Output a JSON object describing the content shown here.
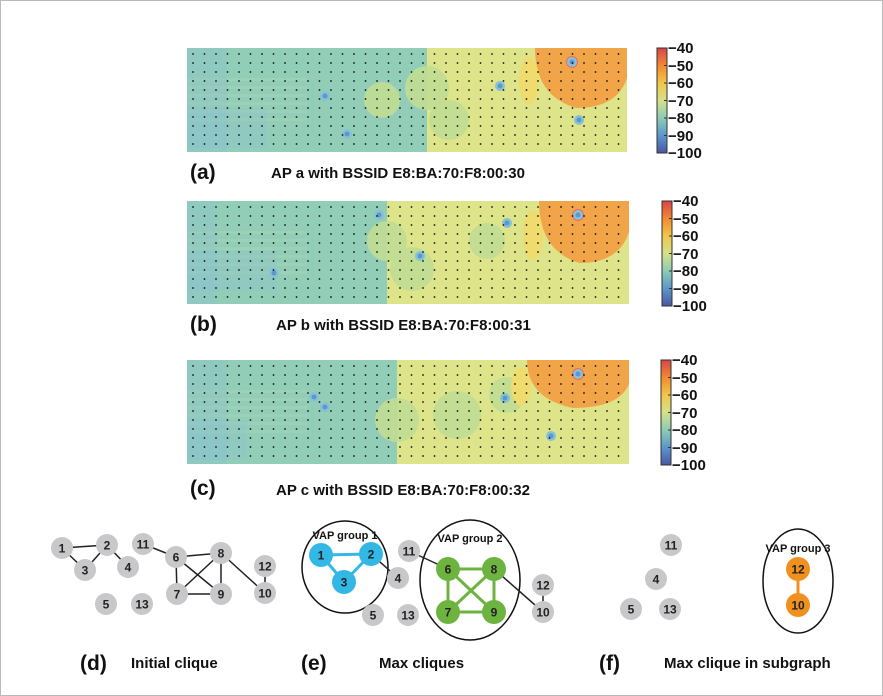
{
  "colorbar": {
    "ticks": [
      "−40",
      "−50",
      "−60",
      "−70",
      "−80",
      "−90",
      "−100"
    ],
    "colors": [
      "#d9434b",
      "#f28a2e",
      "#f2c64a",
      "#d6e08a",
      "#8cccb5",
      "#5b97c9",
      "#4a57a5"
    ]
  },
  "heatmaps": [
    {
      "letter": "(a)",
      "caption": "AP a with BSSID E8:BA:70:F8:00:30"
    },
    {
      "letter": "(b)",
      "caption": "AP b with BSSID E8:BA:70:F8:00:31"
    },
    {
      "letter": "(c)",
      "caption": "AP c with BSSID E8:BA:70:F8:00:32"
    }
  ],
  "graphs": {
    "d": {
      "letter": "(d)",
      "caption": "Initial clique",
      "nodes": [
        "1",
        "2",
        "3",
        "4",
        "5",
        "6",
        "7",
        "8",
        "9",
        "10",
        "11",
        "12",
        "13"
      ]
    },
    "e": {
      "letter": "(e)",
      "caption": "Max cliques",
      "groups": [
        "VAP group 1",
        "VAP group 2"
      ],
      "nodes": [
        "1",
        "2",
        "3",
        "4",
        "5",
        "6",
        "7",
        "8",
        "9",
        "10",
        "11",
        "12",
        "13"
      ]
    },
    "f": {
      "letter": "(f)",
      "caption": "Max clique in subgraph",
      "groups": [
        "VAP group 3"
      ],
      "nodes": [
        "4",
        "5",
        "10",
        "11",
        "12",
        "13"
      ]
    }
  },
  "node_colors": {
    "default": "#c8c8cb",
    "group1": "#33b8e6",
    "group2": "#6db33f",
    "group3": "#f0901e"
  }
}
